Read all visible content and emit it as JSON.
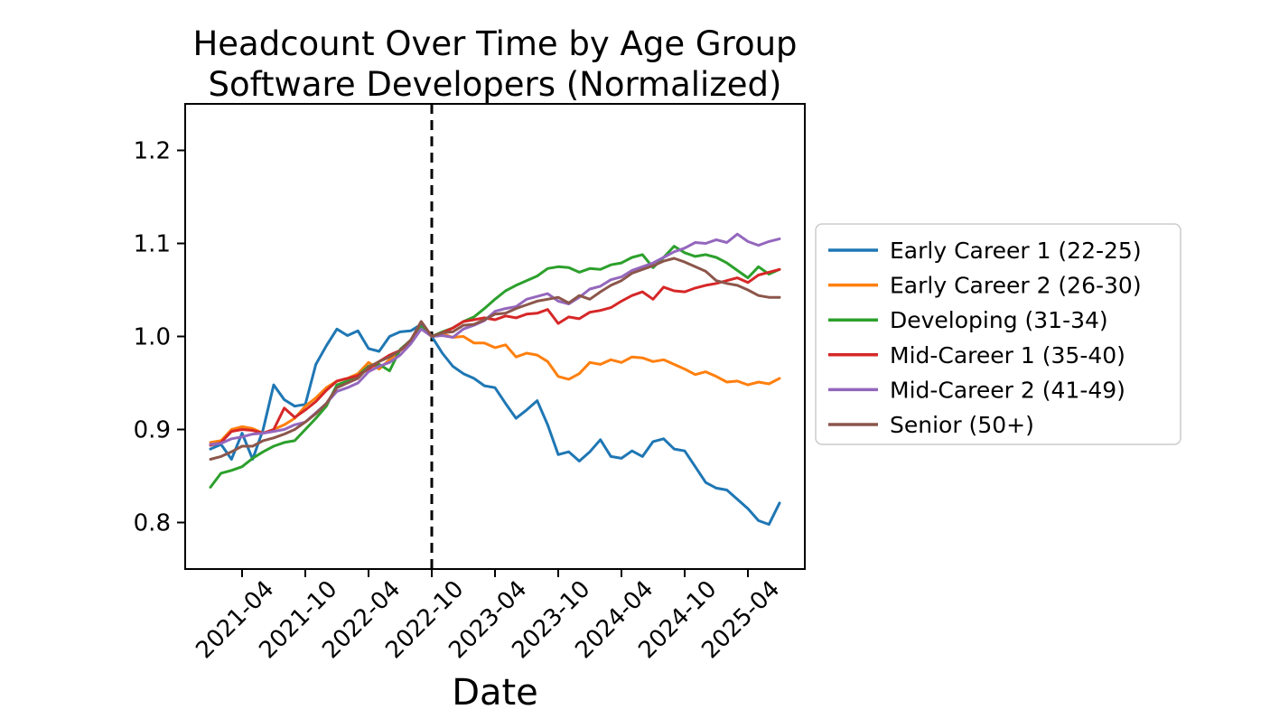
{
  "figure": {
    "background": "#ffffff"
  },
  "chart_data": {
    "type": "line",
    "title_line1": "Headcount Over Time by Age Group",
    "title_line2": "Software Developers (Normalized)",
    "xlabel": "Date",
    "ylabel": "",
    "grid": false,
    "legend_position": "right",
    "ylim": [
      0.75,
      1.25
    ],
    "y_ticks": [
      "0.8",
      "0.9",
      "1.0",
      "1.1",
      "1.2"
    ],
    "x_ticks": [
      "2021-04",
      "2021-10",
      "2022-04",
      "2022-10",
      "2023-04",
      "2023-10",
      "2024-04",
      "2024-10",
      "2025-04"
    ],
    "x": [
      "2021-01",
      "2021-02",
      "2021-03",
      "2021-04",
      "2021-05",
      "2021-06",
      "2021-07",
      "2021-08",
      "2021-09",
      "2021-10",
      "2021-11",
      "2021-12",
      "2022-01",
      "2022-02",
      "2022-03",
      "2022-04",
      "2022-05",
      "2022-06",
      "2022-07",
      "2022-08",
      "2022-09",
      "2022-10",
      "2022-11",
      "2022-12",
      "2023-01",
      "2023-02",
      "2023-03",
      "2023-04",
      "2023-05",
      "2023-06",
      "2023-07",
      "2023-08",
      "2023-09",
      "2023-10",
      "2023-11",
      "2023-12",
      "2024-01",
      "2024-02",
      "2024-03",
      "2024-04",
      "2024-05",
      "2024-06",
      "2024-07",
      "2024-08",
      "2024-09",
      "2024-10",
      "2024-11",
      "2024-12",
      "2025-01",
      "2025-02",
      "2025-03",
      "2025-04",
      "2025-05",
      "2025-06",
      "2025-07"
    ],
    "vline": {
      "x": "2022-10",
      "style": "dashed",
      "color": "#000000"
    },
    "normalization_note": "all series equal 1.0 at 2022-10",
    "series": [
      {
        "name": "Early Career 1 (22-25)",
        "color": "#1f77b4",
        "values": [
          0.879,
          0.884,
          0.868,
          0.896,
          0.868,
          0.9,
          0.948,
          0.932,
          0.925,
          0.927,
          0.97,
          0.99,
          1.008,
          1.001,
          1.006,
          0.987,
          0.984,
          1.0,
          1.005,
          1.006,
          1.013,
          1.0,
          0.982,
          0.968,
          0.96,
          0.955,
          0.947,
          0.945,
          0.928,
          0.912,
          0.921,
          0.931,
          0.905,
          0.873,
          0.876,
          0.866,
          0.876,
          0.889,
          0.871,
          0.869,
          0.877,
          0.871,
          0.887,
          0.89,
          0.879,
          0.877,
          0.86,
          0.843,
          0.837,
          0.835,
          0.825,
          0.815,
          0.802,
          0.798,
          0.821
        ]
      },
      {
        "name": "Early Career 2 (26-30)",
        "color": "#ff7f0e",
        "values": [
          0.886,
          0.888,
          0.9,
          0.903,
          0.901,
          0.896,
          0.9,
          0.905,
          0.912,
          0.925,
          0.934,
          0.945,
          0.952,
          0.955,
          0.96,
          0.972,
          0.965,
          0.975,
          0.985,
          0.993,
          1.01,
          1.0,
          1.003,
          0.999,
          1.0,
          0.993,
          0.993,
          0.988,
          0.991,
          0.978,
          0.982,
          0.98,
          0.973,
          0.957,
          0.954,
          0.96,
          0.972,
          0.97,
          0.975,
          0.972,
          0.978,
          0.977,
          0.973,
          0.975,
          0.97,
          0.965,
          0.959,
          0.962,
          0.957,
          0.951,
          0.952,
          0.948,
          0.951,
          0.949,
          0.955
        ]
      },
      {
        "name": "Developing (31-34)",
        "color": "#2ca02c",
        "values": [
          0.838,
          0.853,
          0.856,
          0.86,
          0.869,
          0.876,
          0.882,
          0.886,
          0.888,
          0.9,
          0.912,
          0.925,
          0.948,
          0.952,
          0.958,
          0.968,
          0.97,
          0.963,
          0.986,
          0.996,
          1.01,
          1.0,
          1.005,
          1.009,
          1.016,
          1.021,
          1.03,
          1.04,
          1.049,
          1.055,
          1.06,
          1.065,
          1.073,
          1.075,
          1.074,
          1.069,
          1.073,
          1.072,
          1.077,
          1.079,
          1.085,
          1.088,
          1.074,
          1.085,
          1.097,
          1.09,
          1.086,
          1.088,
          1.085,
          1.079,
          1.071,
          1.063,
          1.075,
          1.067,
          1.072
        ]
      },
      {
        "name": "Mid-Career 1 (35-40)",
        "color": "#d62728",
        "values": [
          0.883,
          0.886,
          0.898,
          0.9,
          0.899,
          0.896,
          0.9,
          0.923,
          0.913,
          0.921,
          0.93,
          0.942,
          0.952,
          0.955,
          0.958,
          0.965,
          0.973,
          0.98,
          0.985,
          0.995,
          1.016,
          1.0,
          1.004,
          1.009,
          1.016,
          1.018,
          1.02,
          1.018,
          1.022,
          1.02,
          1.024,
          1.025,
          1.029,
          1.014,
          1.021,
          1.019,
          1.026,
          1.028,
          1.031,
          1.038,
          1.044,
          1.048,
          1.04,
          1.053,
          1.049,
          1.048,
          1.052,
          1.055,
          1.057,
          1.06,
          1.063,
          1.058,
          1.066,
          1.069,
          1.072
        ]
      },
      {
        "name": "Mid-Career 2 (41-49)",
        "color": "#9467bd",
        "values": [
          0.884,
          0.885,
          0.89,
          0.892,
          0.895,
          0.896,
          0.898,
          0.9,
          0.905,
          0.908,
          0.918,
          0.928,
          0.941,
          0.945,
          0.95,
          0.962,
          0.968,
          0.972,
          0.98,
          0.992,
          1.008,
          1.0,
          1.001,
          0.999,
          1.008,
          1.012,
          1.017,
          1.027,
          1.03,
          1.032,
          1.04,
          1.043,
          1.046,
          1.038,
          1.035,
          1.042,
          1.051,
          1.054,
          1.061,
          1.064,
          1.071,
          1.075,
          1.079,
          1.085,
          1.091,
          1.095,
          1.101,
          1.1,
          1.104,
          1.101,
          1.11,
          1.102,
          1.098,
          1.102,
          1.105
        ]
      },
      {
        "name": "Senior (50+)",
        "color": "#8c564b",
        "values": [
          0.868,
          0.871,
          0.876,
          0.882,
          0.882,
          0.888,
          0.891,
          0.895,
          0.9,
          0.908,
          0.917,
          0.928,
          0.945,
          0.95,
          0.955,
          0.967,
          0.973,
          0.978,
          0.985,
          0.996,
          1.016,
          1.0,
          1.004,
          1.005,
          1.012,
          1.013,
          1.018,
          1.024,
          1.025,
          1.03,
          1.034,
          1.038,
          1.04,
          1.042,
          1.036,
          1.044,
          1.04,
          1.048,
          1.055,
          1.06,
          1.068,
          1.072,
          1.076,
          1.081,
          1.084,
          1.08,
          1.075,
          1.07,
          1.06,
          1.057,
          1.055,
          1.05,
          1.044,
          1.042,
          1.042
        ]
      }
    ]
  }
}
